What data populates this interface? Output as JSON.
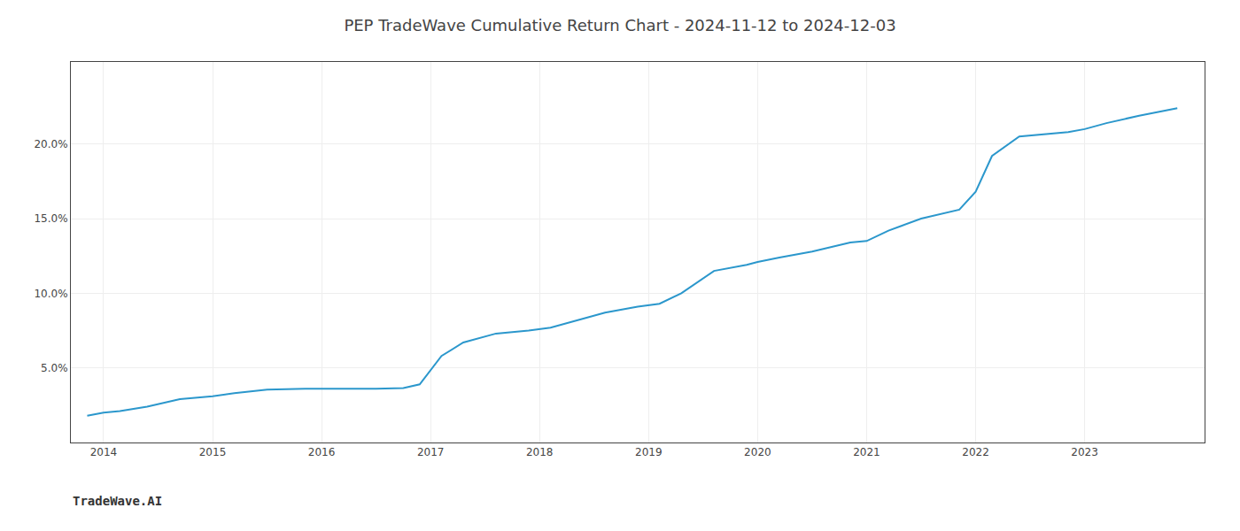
{
  "chart_data": {
    "type": "line",
    "title": "PEP TradeWave Cumulative Return Chart - 2024-11-12 to 2024-12-03",
    "annotations": [
      "TradeWave.AI"
    ],
    "x": [
      2013.85,
      2014.0,
      2014.15,
      2014.4,
      2014.7,
      2015.0,
      2015.2,
      2015.5,
      2015.85,
      2016.0,
      2016.2,
      2016.5,
      2016.75,
      2016.9,
      2017.1,
      2017.3,
      2017.6,
      2017.9,
      2018.1,
      2018.3,
      2018.6,
      2018.9,
      2019.1,
      2019.3,
      2019.6,
      2019.9,
      2020.0,
      2020.2,
      2020.5,
      2020.85,
      2021.0,
      2021.2,
      2021.5,
      2021.85,
      2022.0,
      2022.15,
      2022.4,
      2022.85,
      2023.0,
      2023.2,
      2023.5,
      2023.85
    ],
    "values": [
      1.8,
      2.0,
      2.1,
      2.4,
      2.9,
      3.1,
      3.3,
      3.55,
      3.6,
      3.6,
      3.6,
      3.6,
      3.65,
      3.9,
      5.8,
      6.7,
      7.3,
      7.5,
      7.7,
      8.1,
      8.7,
      9.1,
      9.3,
      10.0,
      11.5,
      11.9,
      12.1,
      12.4,
      12.8,
      13.4,
      13.5,
      14.2,
      15.0,
      15.6,
      16.8,
      19.2,
      20.5,
      20.8,
      21.0,
      21.4,
      21.9,
      22.4
    ],
    "color": "#2b97cc",
    "xlim": [
      2013.7,
      2024.1
    ],
    "ylim": [
      0.0,
      25.5
    ],
    "xticks": [
      2014,
      2015,
      2016,
      2017,
      2018,
      2019,
      2020,
      2021,
      2022,
      2023
    ],
    "yticks": [
      {
        "value": 5.0,
        "label": "5.0%"
      },
      {
        "value": 10.0,
        "label": "10.0%"
      },
      {
        "value": 15.0,
        "label": "15.0%"
      },
      {
        "value": 20.0,
        "label": "20.0%"
      }
    ],
    "grid": true
  }
}
